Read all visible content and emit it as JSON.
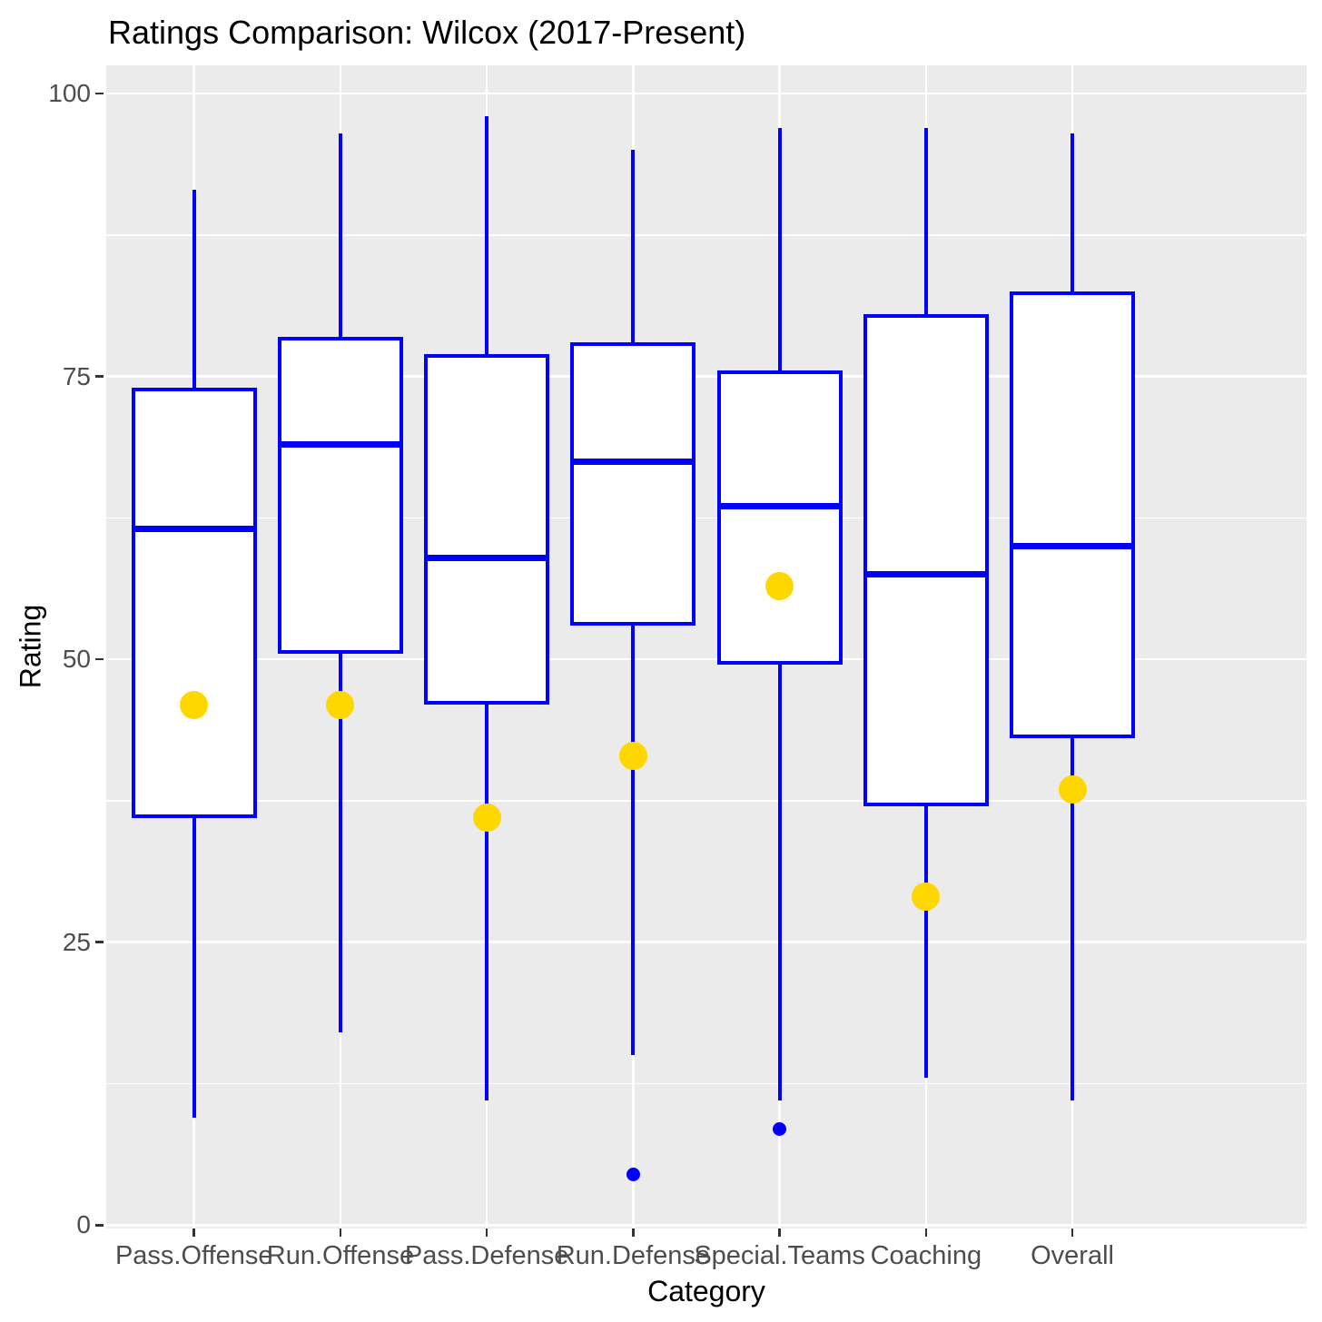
{
  "title": "Ratings Comparison: Wilcox (2017-Present)",
  "chart_data": {
    "type": "boxplot",
    "title": "Ratings Comparison: Wilcox (2017-Present)",
    "xlabel": "Category",
    "ylabel": "Rating",
    "categories": [
      "Pass.Offense",
      "Run.Offense",
      "Pass.Defense",
      "Run.Defense",
      "Special.Teams",
      "Coaching",
      "Overall"
    ],
    "y_axis": {
      "ticks": [
        0,
        25,
        50,
        75,
        100
      ],
      "minor_ticks": [
        12.5,
        37.5,
        62.5,
        87.5
      ],
      "range": [
        -0.3,
        102.5
      ],
      "grid": "on"
    },
    "legend": "none",
    "boxes": [
      {
        "category": "Pass.Offense",
        "whisker_low": 9.5,
        "q1": 36,
        "median": 61.5,
        "q3": 74,
        "whisker_high": 91.5,
        "mean_dot": 46,
        "outliers": []
      },
      {
        "category": "Run.Offense",
        "whisker_low": 17,
        "q1": 50.5,
        "median": 69,
        "q3": 78.5,
        "whisker_high": 96.5,
        "mean_dot": 46,
        "outliers": []
      },
      {
        "category": "Pass.Defense",
        "whisker_low": 11,
        "q1": 46,
        "median": 59,
        "q3": 77,
        "whisker_high": 98,
        "mean_dot": 36,
        "outliers": []
      },
      {
        "category": "Run.Defense",
        "whisker_low": 15,
        "q1": 53,
        "median": 67.5,
        "q3": 78,
        "whisker_high": 95,
        "mean_dot": 41.5,
        "outliers": [
          4.5
        ]
      },
      {
        "category": "Special.Teams",
        "whisker_low": 11,
        "q1": 49.5,
        "median": 63.5,
        "q3": 75.5,
        "whisker_high": 97,
        "mean_dot": 56.5,
        "outliers": [
          8.5
        ]
      },
      {
        "category": "Coaching",
        "whisker_low": 13,
        "q1": 37,
        "median": 57.5,
        "q3": 80.5,
        "whisker_high": 97,
        "mean_dot": 29,
        "outliers": []
      },
      {
        "category": "Overall",
        "whisker_low": 11,
        "q1": 43,
        "median": 60,
        "q3": 82.5,
        "whisker_high": 96.5,
        "mean_dot": 38.5,
        "outliers": []
      }
    ],
    "colors": {
      "box_stroke": "#0000FF",
      "box_fill": "#FFFFFF",
      "mean_dot": "#FFD700",
      "outlier_dot": "#0000FF",
      "panel_bg": "#EBEBEB",
      "gridline": "#FFFFFF",
      "axis_text": "#4D4D4D",
      "tick_mark": "#333333",
      "title_text": "#000000"
    }
  }
}
